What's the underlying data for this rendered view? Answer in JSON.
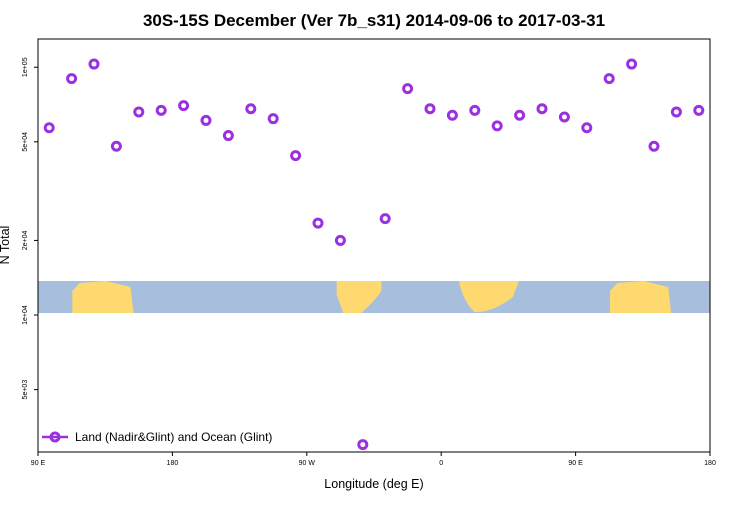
{
  "chart_data": {
    "type": "scatter",
    "title": "30S-15S December (Ver 7b_s31)   2014-09-06 to 2017-03-31",
    "xlabel": "Longitude (deg E)",
    "ylabel": "N Total",
    "x_scale": "linear",
    "y_scale": "log",
    "xlim": [
      90,
      540
    ],
    "ylim": [
      2800,
      130000
    ],
    "grid": false,
    "legend_position": "bottom-left",
    "x_ticks": [
      {
        "value": 90,
        "label": "90 E"
      },
      {
        "value": 180,
        "label": "180"
      },
      {
        "value": 270,
        "label": "90 W"
      },
      {
        "value": 360,
        "label": "0"
      },
      {
        "value": 450,
        "label": "90 E"
      },
      {
        "value": 540,
        "label": "180"
      }
    ],
    "y_ticks": [
      {
        "value": 5000,
        "label": "5e+03"
      },
      {
        "value": 10000,
        "label": "1e+04"
      },
      {
        "value": 20000,
        "label": "2e+04"
      },
      {
        "value": 50000,
        "label": "5e+04"
      },
      {
        "value": 100000,
        "label": "1e+05"
      }
    ],
    "series": [
      {
        "name": "Land (Nadir&Glint) and Ocean (Glint)",
        "color": "#9b30e0",
        "marker": "open-circle",
        "x": [
          97.5,
          112.5,
          127.5,
          142.5,
          157.5,
          172.5,
          187.5,
          202.5,
          217.5,
          232.5,
          247.5,
          262.5,
          277.5,
          292.5,
          307.5,
          322.5,
          337.5,
          352.5,
          367.5,
          382.5,
          397.5,
          412.5,
          427.5,
          442.5,
          457.5,
          472.5,
          487.5,
          502.5,
          517.5,
          532.5
        ],
        "y": [
          57000,
          90000,
          103000,
          48000,
          66000,
          67000,
          70000,
          61000,
          53000,
          68000,
          62000,
          44000,
          23500,
          20000,
          3000,
          24500,
          82000,
          68000,
          64000,
          67000,
          58000,
          64000,
          68000,
          63000,
          57000,
          90000,
          103000,
          48000,
          66000,
          67000
        ]
      }
    ]
  },
  "map_band": {
    "ocean_color": "#a8bedd",
    "land_color": "#fdd96f",
    "land_segments": [
      {
        "name": "australia",
        "lon_start": 113,
        "lon_end": 154
      },
      {
        "name": "south-america",
        "lon_start": 290,
        "lon_end": 320
      },
      {
        "name": "southern-africa",
        "lon_start": 372,
        "lon_end": 412
      },
      {
        "name": "australia-repeat",
        "lon_start": 473,
        "lon_end": 514
      }
    ]
  }
}
